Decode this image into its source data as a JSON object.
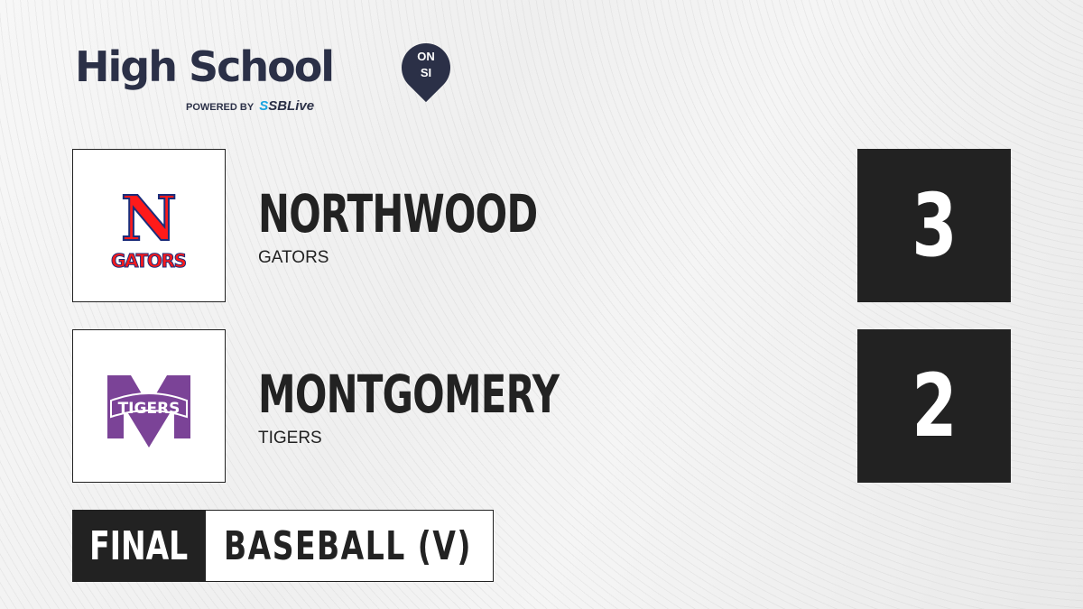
{
  "brand": {
    "title": "High School",
    "badge_top": "ON",
    "badge_bottom": "SI",
    "powered_by": "POWERED BY",
    "partner_prefix": "S",
    "partner": "SBLive"
  },
  "teams": [
    {
      "name": "NORTHWOOD",
      "mascot": "GATORS",
      "logo_letter": "N",
      "logo_text": "GATORS",
      "score": "3",
      "logo_colors": {
        "primary": "#ff1a1a",
        "outline": "#1b2d7a"
      }
    },
    {
      "name": "MONTGOMERY",
      "mascot": "TIGERS",
      "logo_letter": "M",
      "logo_text": "TIGERS",
      "score": "2",
      "logo_colors": {
        "primary": "#7b4397"
      }
    }
  ],
  "status": "FINAL",
  "sport": "BASEBALL (V)"
}
